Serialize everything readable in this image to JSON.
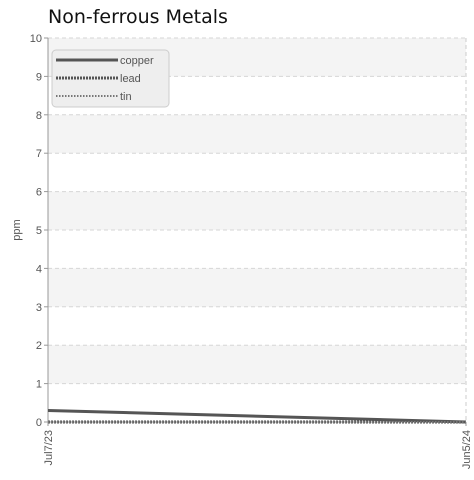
{
  "chart_data": {
    "type": "line",
    "title": "Non-ferrous Metals",
    "xlabel": "",
    "ylabel": "ppm",
    "x_ticks": [
      "Jul7/23",
      "Jun5/24"
    ],
    "ylim": [
      0,
      10
    ],
    "y_ticks": [
      0,
      1,
      2,
      3,
      4,
      5,
      6,
      7,
      8,
      9,
      10
    ],
    "grid": true,
    "legend_position": "top-left",
    "series": [
      {
        "name": "copper",
        "style": "solid",
        "color": "#555555",
        "x": [
          "Jul7/23",
          "Jun5/24"
        ],
        "values": [
          0.3,
          0
        ]
      },
      {
        "name": "lead",
        "style": "dotted-thick",
        "color": "#555555",
        "x": [
          "Jul7/23",
          "Jun5/24"
        ],
        "values": [
          0,
          0
        ]
      },
      {
        "name": "tin",
        "style": "dotted-thin",
        "color": "#777777",
        "x": [
          "Jul7/23",
          "Jun5/24"
        ],
        "values": [
          0,
          0
        ]
      }
    ]
  }
}
